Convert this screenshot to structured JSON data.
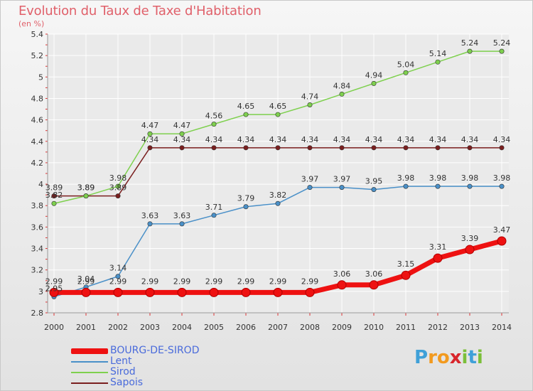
{
  "title": "Evolution du Taux de Taxe d'Habitation",
  "unit": "(en %)",
  "brand": {
    "text": "Proxiti",
    "letter_colors": [
      "#3fa0d8",
      "#f29a1f",
      "#f29a1f",
      "#d8262c",
      "#7bbf3a",
      "#3fa0d8",
      "#7bbf3a"
    ]
  },
  "chart_data": {
    "type": "line",
    "x": [
      "2000",
      "2001",
      "2002",
      "2003",
      "2004",
      "2005",
      "2006",
      "2007",
      "2008",
      "2009",
      "2010",
      "2011",
      "2012",
      "2013",
      "2014"
    ],
    "ylim": [
      2.8,
      5.4
    ],
    "yticks": [
      "2.8",
      "3",
      "3.2",
      "3.4",
      "3.6",
      "3.8",
      "4",
      "4.2",
      "4.4",
      "4.6",
      "4.8",
      "5",
      "5.2",
      "5.4"
    ],
    "grid": true,
    "legend_position": "bottom-left",
    "series": [
      {
        "name": "Sapois",
        "color": "#7a1f1f",
        "values": [
          3.89,
          3.89,
          3.89,
          4.34,
          4.34,
          4.34,
          4.34,
          4.34,
          4.34,
          4.34,
          4.34,
          4.34,
          4.34,
          4.34,
          4.34
        ]
      },
      {
        "name": "Sirod",
        "color": "#7ed04e",
        "values": [
          3.82,
          3.89,
          3.98,
          4.47,
          4.47,
          4.56,
          4.65,
          4.65,
          4.74,
          4.84,
          4.94,
          5.04,
          5.14,
          5.24,
          5.24
        ]
      },
      {
        "name": "Lent",
        "color": "#4a90c8",
        "values": [
          2.95,
          3.04,
          3.14,
          3.63,
          3.63,
          3.71,
          3.79,
          3.82,
          3.97,
          3.97,
          3.95,
          3.98,
          3.98,
          3.98,
          3.98
        ]
      },
      {
        "name": "BOURG-DE-SIROD",
        "color": "#ee1111",
        "values": [
          2.99,
          2.99,
          2.99,
          2.99,
          2.99,
          2.99,
          2.99,
          2.99,
          2.99,
          3.06,
          3.06,
          3.15,
          3.31,
          3.39,
          3.47
        ]
      }
    ],
    "data_labels": {
      "Sapois": [
        "3.89",
        "3.89",
        "3.89",
        "4.34",
        "4.34",
        "4.34",
        "4.34",
        "4.34",
        "4.34",
        "4.34",
        "4.34",
        "4.34",
        "4.34",
        "4.34",
        "4.34"
      ],
      "Sirod": [
        "3.82",
        "3.89",
        "3.98",
        "4.47",
        "4.47",
        "4.56",
        "4.65",
        "4.65",
        "4.74",
        "4.84",
        "4.94",
        "5.04",
        "5.14",
        "5.24",
        "5.24"
      ],
      "Lent": [
        "2.95",
        "3.04",
        "3.14",
        "3.63",
        "3.63",
        "3.71",
        "3.79",
        "3.82",
        "3.97",
        "3.97",
        "3.95",
        "3.98",
        "3.98",
        "3.98",
        "3.98"
      ],
      "BOURG-DE-SIROD": [
        "2.99",
        "2.99",
        "2.99",
        "2.99",
        "2.99",
        "2.99",
        "2.99",
        "2.99",
        "2.99",
        "3.06",
        "3.06",
        "3.15",
        "3.31",
        "3.39",
        "3.47"
      ]
    },
    "legend": [
      "BOURG-DE-SIROD",
      "Lent",
      "Sirod",
      "Sapois"
    ]
  }
}
